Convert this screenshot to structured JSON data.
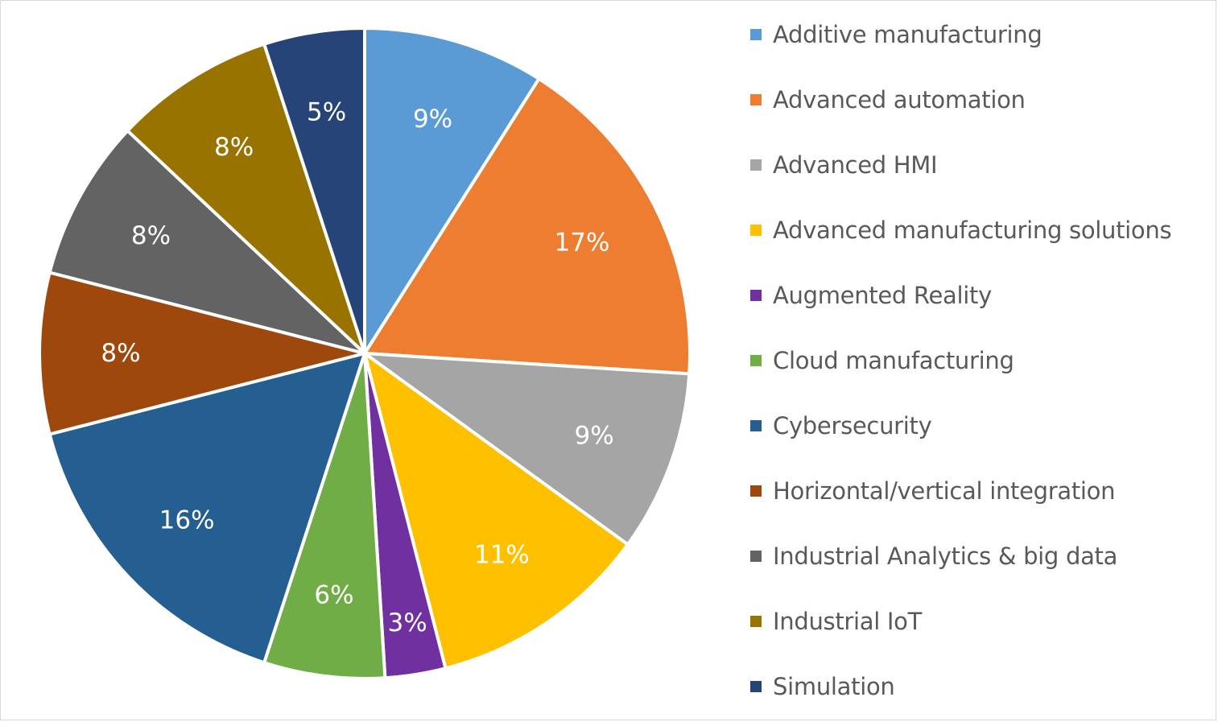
{
  "chart_data": {
    "type": "pie",
    "title": "",
    "start_angle_deg": 0,
    "direction": "clockwise",
    "legend_position": "right",
    "slices": [
      {
        "label": "Additive manufacturing",
        "value": 9,
        "value_label": "9%",
        "color": "#5b9bd5"
      },
      {
        "label": "Advanced automation",
        "value": 17,
        "value_label": "17%",
        "color": "#ed7d31"
      },
      {
        "label": "Advanced HMI",
        "value": 9,
        "value_label": "9%",
        "color": "#a5a5a5"
      },
      {
        "label": "Advanced manufacturing solutions",
        "value": 11,
        "value_label": "11%",
        "color": "#ffc000"
      },
      {
        "label": "Augmented Reality",
        "value": 3,
        "value_label": "3%",
        "color": "#7030a0"
      },
      {
        "label": "Cloud manufacturing",
        "value": 6,
        "value_label": "6%",
        "color": "#70ad47"
      },
      {
        "label": "Cybersecurity",
        "value": 16,
        "value_label": "16%",
        "color": "#255e91"
      },
      {
        "label": "Horizontal/vertical integration",
        "value": 8,
        "value_label": "8%",
        "color": "#9e480e"
      },
      {
        "label": "Industrial Analytics & big data",
        "value": 8,
        "value_label": "8%",
        "color": "#636363"
      },
      {
        "label": "Industrial IoT",
        "value": 8,
        "value_label": "8%",
        "color": "#997300"
      },
      {
        "label": "Simulation",
        "value": 5,
        "value_label": "5%",
        "color": "#264478"
      }
    ]
  }
}
